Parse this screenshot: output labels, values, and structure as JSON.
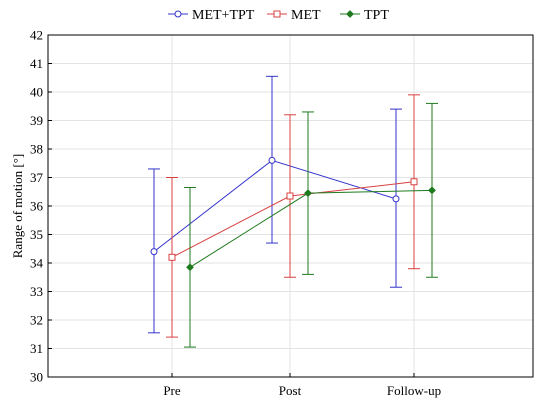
{
  "chart_data": {
    "type": "line",
    "title": "",
    "xlabel": "",
    "ylabel": "Range of motion [°]",
    "categories": [
      "Pre",
      "Post",
      "Follow-up"
    ],
    "ylim": [
      30,
      42
    ],
    "yticks": [
      30,
      31,
      32,
      33,
      34,
      35,
      36,
      37,
      38,
      39,
      40,
      41,
      42
    ],
    "grid": true,
    "legend_position": "top-center",
    "series": [
      {
        "name": "MET+TPT",
        "color": "#3333cc",
        "marker": "circle",
        "values": [
          34.4,
          37.6,
          36.25
        ],
        "lower": [
          31.55,
          34.7,
          33.15
        ],
        "upper": [
          37.3,
          40.55,
          39.4
        ]
      },
      {
        "name": "MET",
        "color": "#d94040",
        "marker": "square",
        "values": [
          34.2,
          36.35,
          36.85
        ],
        "lower": [
          31.4,
          33.5,
          33.8
        ],
        "upper": [
          37.0,
          39.2,
          39.9
        ]
      },
      {
        "name": "TPT",
        "color": "#1f7a1f",
        "marker": "diamond",
        "values": [
          33.85,
          36.45,
          36.55
        ],
        "lower": [
          31.05,
          33.6,
          33.5
        ],
        "upper": [
          36.65,
          39.3,
          39.6
        ]
      }
    ]
  }
}
